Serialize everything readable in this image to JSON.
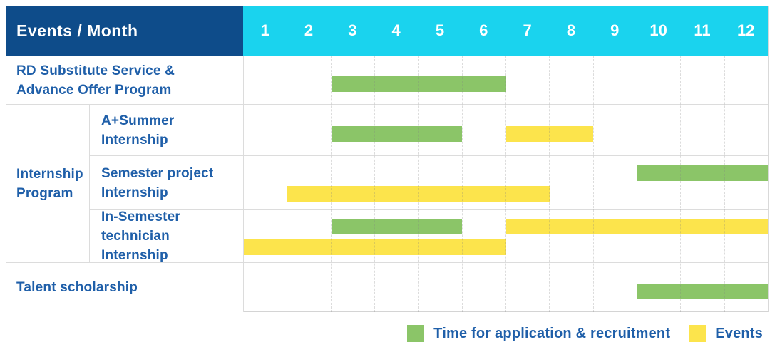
{
  "colors": {
    "navy": "#0E4C8A",
    "cyan": "#1AD3EE",
    "green": "#8BC568",
    "yellow": "#FCE44C",
    "blue": "#1F5FA9"
  },
  "header": {
    "label": "Events / Month",
    "months": [
      "1",
      "2",
      "3",
      "4",
      "5",
      "6",
      "7",
      "8",
      "9",
      "10",
      "11",
      "12"
    ]
  },
  "side": {
    "group": {
      "line1": "Internship",
      "line2": "Program"
    },
    "rows": [
      {
        "line1": "RD Substitute Service &",
        "line2": "Advance Offer Program"
      },
      {
        "line1": "A+Summer",
        "line2": "Internship"
      },
      {
        "line1": "Semester project",
        "line2": "Internship"
      },
      {
        "line1": "In-Semester",
        "line2": "technician Internship"
      },
      {
        "line1": "Talent scholarship",
        "line2": ""
      }
    ]
  },
  "legend": [
    {
      "series": "application",
      "label": "Time for application & recruitment",
      "color": "#8BC568"
    },
    {
      "series": "events",
      "label": "Events",
      "color": "#FCE44C"
    }
  ],
  "chart_data": {
    "type": "bar",
    "subtype": "gantt",
    "title": "Events / Month",
    "x_axis": {
      "label": "Month",
      "range": [
        1,
        12
      ],
      "ticks": [
        "1",
        "2",
        "3",
        "4",
        "5",
        "6",
        "7",
        "8",
        "9",
        "10",
        "11",
        "12"
      ]
    },
    "grid": "dashed-vertical-month-lines",
    "legend_position": "bottom-right",
    "series_colors": {
      "application": "#8BC568",
      "events": "#FCE44C"
    },
    "rows": [
      {
        "event": "RD Substitute Service & Advance Offer Program",
        "group": null,
        "bars": [
          {
            "series": "application",
            "start_month": 3,
            "end_month": 6,
            "lane": "single"
          }
        ]
      },
      {
        "event": "A+Summer Internship",
        "group": "Internship Program",
        "bars": [
          {
            "series": "application",
            "start_month": 3,
            "end_month": 5,
            "lane": "single"
          },
          {
            "series": "events",
            "start_month": 7,
            "end_month": 8,
            "lane": "single"
          }
        ]
      },
      {
        "event": "Semester project Internship",
        "group": "Internship Program",
        "bars": [
          {
            "series": "application",
            "start_month": 10,
            "end_month": 12,
            "lane": "upper"
          },
          {
            "series": "events",
            "start_month": 2,
            "end_month": 7,
            "lane": "lower"
          }
        ]
      },
      {
        "event": "In-Semester technician Internship",
        "group": "Internship Program",
        "bars": [
          {
            "series": "application",
            "start_month": 3,
            "end_month": 5,
            "lane": "upper"
          },
          {
            "series": "events",
            "start_month": 7,
            "end_month": 12,
            "lane": "upper"
          },
          {
            "series": "events",
            "start_month": 1,
            "end_month": 6,
            "lane": "lower"
          }
        ]
      },
      {
        "event": "Talent scholarship",
        "group": null,
        "bars": [
          {
            "series": "application",
            "start_month": 10,
            "end_month": 12,
            "lane": "single"
          }
        ]
      }
    ]
  }
}
